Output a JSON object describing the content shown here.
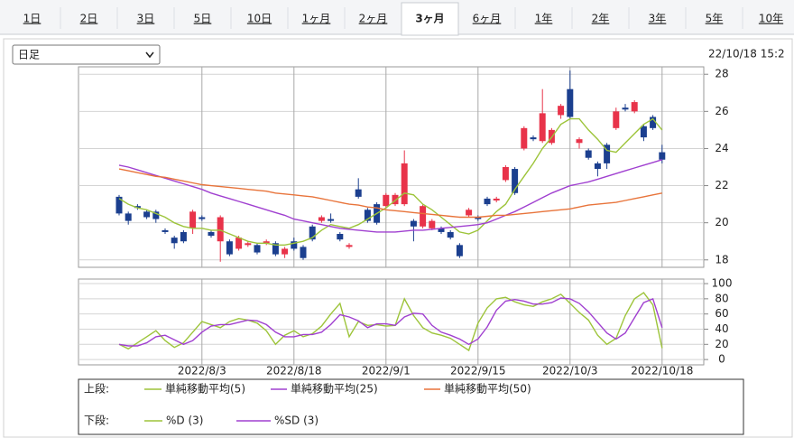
{
  "tabs": {
    "items": [
      "1日",
      "2日",
      "3日",
      "5日",
      "10日",
      "1ヶ月",
      "2ヶ月",
      "3ヶ月",
      "6ヶ月",
      "1年",
      "2年",
      "3年",
      "5年",
      "10年"
    ],
    "active": 7
  },
  "period_select": "日足",
  "timestamp": "22/10/18 15:2",
  "chart_data": [
    {
      "type": "candlestick",
      "categories": [
        null,
        null,
        null,
        null,
        null,
        null,
        null,
        null,
        null,
        "2022/8/3",
        null,
        null,
        null,
        null,
        null,
        null,
        null,
        null,
        null,
        "2022/8/18",
        null,
        null,
        null,
        null,
        null,
        null,
        null,
        null,
        null,
        "2022/9/1",
        null,
        null,
        null,
        null,
        null,
        null,
        null,
        null,
        null,
        "2022/9/15",
        null,
        null,
        null,
        null,
        null,
        null,
        null,
        null,
        null,
        "2022/10/3",
        null,
        null,
        null,
        null,
        null,
        null,
        null,
        null,
        null,
        "2022/10/18"
      ],
      "open": [
        21.4,
        20.5,
        20.9,
        20.6,
        20.6,
        19.6,
        19.2,
        19.5,
        19.7,
        20.3,
        19.5,
        19.0,
        19.0,
        18.6,
        18.8,
        18.8,
        18.9,
        18.9,
        18.3,
        19.0,
        18.7,
        19.8,
        20.1,
        20.2,
        19.4,
        18.7,
        21.8,
        20.7,
        21.0,
        20.9,
        21.0,
        21.0,
        20.1,
        19.8,
        19.7,
        19.7,
        19.5,
        18.8,
        20.4,
        20.3,
        21.3,
        21.2,
        22.3,
        22.9,
        24.0,
        24.6,
        24.4,
        24.3,
        25.8,
        27.2,
        24.3,
        23.9,
        23.2,
        24.2,
        25.1,
        26.2,
        26.0,
        25.2,
        25.7,
        23.8
      ],
      "high": [
        21.5,
        20.6,
        21.0,
        20.7,
        20.7,
        19.7,
        19.3,
        19.6,
        20.7,
        20.4,
        19.6,
        20.4,
        19.1,
        19.3,
        19.0,
        18.9,
        19.1,
        19.0,
        18.7,
        19.2,
        18.8,
        19.9,
        20.4,
        20.5,
        19.5,
        18.9,
        22.4,
        20.8,
        21.1,
        21.6,
        21.6,
        23.9,
        20.2,
        21.0,
        20.2,
        19.8,
        19.6,
        18.9,
        20.8,
        20.4,
        21.4,
        21.4,
        23.1,
        23.0,
        25.2,
        24.7,
        27.2,
        25.1,
        26.4,
        28.2,
        24.6,
        24.0,
        23.3,
        24.3,
        26.2,
        26.4,
        26.6,
        25.3,
        25.8,
        24.2
      ],
      "low": [
        20.4,
        19.9,
        20.7,
        20.2,
        20.0,
        19.4,
        18.6,
        18.9,
        19.4,
        20.1,
        19.2,
        17.9,
        18.2,
        18.5,
        18.7,
        18.3,
        18.8,
        18.2,
        18.1,
        18.5,
        18.0,
        19.0,
        20.0,
        20.0,
        19.0,
        18.6,
        21.3,
        20.0,
        19.9,
        20.8,
        20.9,
        20.9,
        19.0,
        19.7,
        19.6,
        19.4,
        19.1,
        18.1,
        20.3,
        20.1,
        20.9,
        21.1,
        22.2,
        21.5,
        23.9,
        24.4,
        24.3,
        24.2,
        25.6,
        25.6,
        24.0,
        23.4,
        22.5,
        22.9,
        25.0,
        26.0,
        25.9,
        24.4,
        25.0,
        23.2
      ],
      "close": [
        20.5,
        20.1,
        20.8,
        20.3,
        20.2,
        19.5,
        18.9,
        19.0,
        20.6,
        20.2,
        19.3,
        20.3,
        18.3,
        19.2,
        18.9,
        18.4,
        19.0,
        18.3,
        18.6,
        18.6,
        18.1,
        19.1,
        20.3,
        20.1,
        19.1,
        18.8,
        21.4,
        20.1,
        20.0,
        21.5,
        21.5,
        23.2,
        19.8,
        20.9,
        20.1,
        19.5,
        19.2,
        18.2,
        20.7,
        20.2,
        21.0,
        21.3,
        23.0,
        21.6,
        25.1,
        24.5,
        25.9,
        25.0,
        26.3,
        25.7,
        24.5,
        23.5,
        22.9,
        23.2,
        26.0,
        26.1,
        26.5,
        24.6,
        25.1,
        23.4
      ],
      "up_color": "#e8334a",
      "down_color": "#1b3f8f",
      "series": [
        {
          "name": "単純移動平均(5)",
          "color": "#9dc43a",
          "values": [
            21.3,
            21.0,
            20.8,
            20.7,
            20.5,
            20.3,
            20.0,
            19.8,
            19.7,
            19.7,
            19.6,
            19.6,
            19.4,
            19.2,
            19.0,
            18.9,
            18.9,
            18.8,
            18.8,
            18.9,
            19.0,
            19.2,
            19.6,
            19.9,
            19.8,
            19.7,
            19.9,
            20.2,
            20.5,
            20.8,
            21.2,
            21.6,
            21.5,
            21.0,
            20.7,
            20.3,
            19.9,
            19.5,
            19.4,
            19.6,
            20.1,
            20.6,
            21.0,
            21.8,
            22.5,
            23.2,
            24.0,
            24.6,
            25.3,
            25.6,
            25.6,
            25.0,
            24.5,
            23.9,
            23.8,
            24.3,
            24.8,
            25.3,
            25.6,
            25.0
          ]
        },
        {
          "name": "単純移動平均(25)",
          "color": "#a040d0",
          "values": [
            23.1,
            23.0,
            22.85,
            22.7,
            22.55,
            22.4,
            22.25,
            22.1,
            21.95,
            21.8,
            21.6,
            21.45,
            21.3,
            21.15,
            21.0,
            20.85,
            20.7,
            20.55,
            20.4,
            20.2,
            20.1,
            20.0,
            19.9,
            19.8,
            19.7,
            19.65,
            19.6,
            19.55,
            19.5,
            19.5,
            19.5,
            19.55,
            19.6,
            19.6,
            19.65,
            19.7,
            19.75,
            19.8,
            19.85,
            19.9,
            20.0,
            20.2,
            20.4,
            20.6,
            20.85,
            21.1,
            21.35,
            21.6,
            21.8,
            22.0,
            22.1,
            22.2,
            22.35,
            22.5,
            22.65,
            22.8,
            22.95,
            23.1,
            23.25,
            23.4
          ]
        },
        {
          "name": "単純移動平均(50)",
          "color": "#e8743b",
          "values": [
            22.9,
            22.8,
            22.7,
            22.6,
            22.5,
            22.45,
            22.35,
            22.25,
            22.15,
            22.05,
            22.0,
            21.95,
            21.9,
            21.85,
            21.8,
            21.75,
            21.7,
            21.6,
            21.55,
            21.5,
            21.45,
            21.4,
            21.3,
            21.2,
            21.1,
            21.0,
            20.95,
            20.85,
            20.8,
            20.7,
            20.65,
            20.6,
            20.55,
            20.5,
            20.45,
            20.4,
            20.35,
            20.3,
            20.3,
            20.3,
            20.35,
            20.4,
            20.4,
            20.45,
            20.5,
            20.55,
            20.6,
            20.65,
            20.7,
            20.75,
            20.85,
            20.95,
            21.0,
            21.05,
            21.1,
            21.2,
            21.3,
            21.4,
            21.5,
            21.6
          ]
        }
      ],
      "ylim": [
        17.6,
        28.4
      ],
      "yticks": [
        18,
        20,
        22,
        24,
        26,
        28
      ],
      "grid": true,
      "legend_label": "上段:"
    },
    {
      "type": "line",
      "series": [
        {
          "name": "%D (3)",
          "color": "#9dc43a",
          "values": [
            20,
            14,
            22,
            30,
            38,
            25,
            16,
            22,
            36,
            50,
            46,
            42,
            50,
            54,
            52,
            48,
            38,
            20,
            32,
            38,
            30,
            34,
            44,
            60,
            74,
            30,
            50,
            45,
            46,
            44,
            45,
            80,
            58,
            42,
            35,
            32,
            28,
            20,
            12,
            48,
            68,
            80,
            82,
            76,
            72,
            70,
            76,
            80,
            86,
            74,
            62,
            52,
            32,
            20,
            28,
            58,
            80,
            88,
            72,
            15
          ]
        },
        {
          "name": "%SD (3)",
          "color": "#a040d0",
          "values": [
            20,
            18,
            18,
            22,
            30,
            32,
            26,
            20,
            25,
            36,
            44,
            46,
            46,
            49,
            52,
            51,
            46,
            36,
            30,
            30,
            33,
            33,
            36,
            46,
            59,
            56,
            51,
            42,
            47,
            47,
            45,
            56,
            61,
            60,
            45,
            36,
            32,
            27,
            20,
            27,
            43,
            65,
            77,
            79,
            77,
            73,
            73,
            75,
            81,
            80,
            74,
            63,
            49,
            35,
            27,
            35,
            55,
            75,
            80,
            42
          ]
        }
      ],
      "ylim": [
        -7,
        106
      ],
      "yticks": [
        0,
        20,
        40,
        60,
        80,
        100
      ],
      "grid": true,
      "legend_label": "下段:"
    }
  ]
}
